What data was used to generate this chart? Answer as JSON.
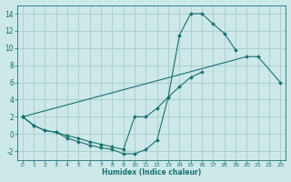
{
  "xlabel": "Humidex (Indice chaleur)",
  "bg_color": "#cce8e8",
  "grid_color": "#aacccc",
  "line_color": "#1a7070",
  "xlim": [
    -0.5,
    23.5
  ],
  "ylim": [
    -3.0,
    15.0
  ],
  "xtick_vals": [
    0,
    1,
    2,
    3,
    4,
    5,
    6,
    7,
    8,
    9,
    10,
    11,
    12,
    13,
    14,
    15,
    16,
    17,
    18,
    19,
    20,
    21,
    22,
    23
  ],
  "ytick_vals": [
    -2,
    0,
    2,
    4,
    6,
    8,
    10,
    12,
    14
  ],
  "curve1_x": [
    0,
    1,
    2,
    3,
    4,
    5,
    6,
    7,
    8,
    9,
    10,
    11,
    12,
    13,
    14,
    15,
    16,
    17,
    18,
    19
  ],
  "curve1_y": [
    2.0,
    1.0,
    0.4,
    0.2,
    -0.5,
    -0.9,
    -1.3,
    -1.6,
    -1.8,
    -2.3,
    -2.3,
    -1.8,
    -0.7,
    4.3,
    11.5,
    14.0,
    14.0,
    12.8,
    11.7,
    9.8
  ],
  "curve2_x": [
    0,
    1,
    2,
    3,
    4,
    5,
    6,
    7,
    8,
    9,
    10,
    11,
    12,
    13,
    14,
    15,
    16
  ],
  "curve2_y": [
    2.0,
    1.0,
    0.4,
    0.2,
    -0.2,
    -0.5,
    -0.9,
    -1.2,
    -1.5,
    -1.8,
    2.0,
    2.0,
    3.0,
    4.3,
    5.5,
    6.6,
    7.2
  ],
  "curve3_x": [
    0,
    20,
    21,
    23
  ],
  "curve3_y": [
    2.0,
    9.0,
    9.0,
    6.0
  ]
}
